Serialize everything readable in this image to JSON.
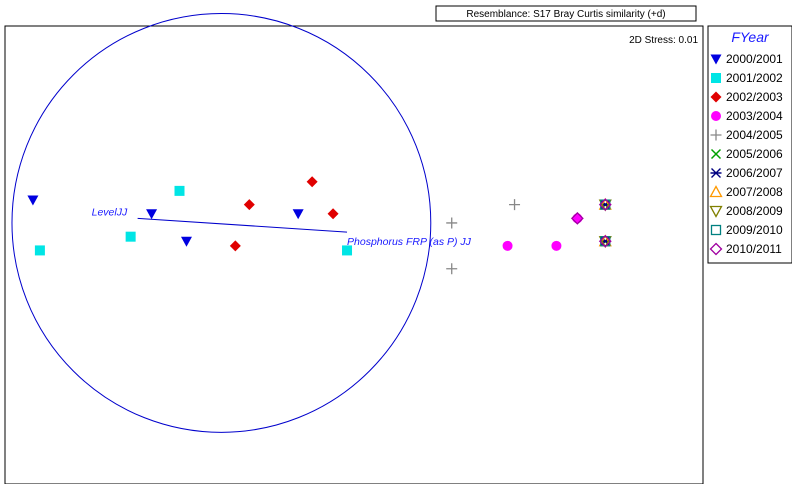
{
  "header": {
    "resemblance": "Resemblance: S17 Bray Curtis similarity (+d)"
  },
  "plot": {
    "stress_label": "2D Stress: 0.01"
  },
  "legend": {
    "title": "FYear",
    "items": [
      {
        "label": "2000/2001",
        "symbol": "triangle-down-filled",
        "color": "#0000e0"
      },
      {
        "label": "2001/2002",
        "symbol": "square-filled",
        "color": "#00e5e5"
      },
      {
        "label": "2002/2003",
        "symbol": "diamond-filled",
        "color": "#e00000"
      },
      {
        "label": "2003/2004",
        "symbol": "circle-filled",
        "color": "#ff00ff"
      },
      {
        "label": "2004/2005",
        "symbol": "plus",
        "color": "#888888"
      },
      {
        "label": "2005/2006",
        "symbol": "cross",
        "color": "#00a000"
      },
      {
        "label": "2006/2007",
        "symbol": "asterisk",
        "color": "#000080"
      },
      {
        "label": "2007/2008",
        "symbol": "triangle-up-open",
        "color": "#ff9900"
      },
      {
        "label": "2008/2009",
        "symbol": "triangle-down-open",
        "color": "#808000"
      },
      {
        "label": "2009/2010",
        "symbol": "square-open",
        "color": "#008080"
      },
      {
        "label": "2010/2011",
        "symbol": "diamond-open",
        "color": "#a000a0"
      }
    ]
  },
  "chart_data": {
    "type": "scatter",
    "xlim": [
      0,
      100
    ],
    "ylim": [
      0,
      100
    ],
    "grid": false,
    "legend_position": "right",
    "series": [
      {
        "name": "2000/2001",
        "points": [
          [
            4,
            62
          ],
          [
            21,
            59
          ],
          [
            26,
            53
          ],
          [
            42,
            59
          ]
        ]
      },
      {
        "name": "2001/2002",
        "points": [
          [
            5,
            51
          ],
          [
            18,
            54
          ],
          [
            25,
            64
          ],
          [
            49,
            51
          ]
        ]
      },
      {
        "name": "2002/2003",
        "points": [
          [
            35,
            61
          ],
          [
            44,
            66
          ],
          [
            47,
            59
          ],
          [
            33,
            52
          ]
        ]
      },
      {
        "name": "2003/2004",
        "points": [
          [
            72,
            52
          ],
          [
            79,
            52
          ],
          [
            82,
            58
          ]
        ]
      },
      {
        "name": "2004/2005",
        "points": [
          [
            64,
            57
          ],
          [
            73,
            61
          ],
          [
            64,
            47
          ]
        ]
      },
      {
        "name": "2005/2006",
        "points": [
          [
            86,
            61
          ],
          [
            86,
            53
          ]
        ]
      },
      {
        "name": "2006/2007",
        "points": [
          [
            86,
            61
          ],
          [
            86,
            53
          ]
        ]
      },
      {
        "name": "2007/2008",
        "points": [
          [
            86,
            61
          ],
          [
            86,
            53
          ]
        ]
      },
      {
        "name": "2008/2009",
        "points": [
          [
            86,
            61
          ],
          [
            86,
            53
          ]
        ]
      },
      {
        "name": "2009/2010",
        "points": [
          [
            86,
            61
          ],
          [
            86,
            53
          ]
        ]
      },
      {
        "name": "2010/2011",
        "points": [
          [
            86,
            61
          ],
          [
            86,
            53
          ],
          [
            82,
            58
          ]
        ]
      }
    ],
    "vectors": [
      {
        "label": "LevelJJ",
        "x": 19,
        "y": 58
      },
      {
        "label": "Phosphorus FRP (as P) JJ",
        "x": 49,
        "y": 55
      }
    ],
    "circle": {
      "cx": 31,
      "cy": 57,
      "r": 30
    }
  }
}
